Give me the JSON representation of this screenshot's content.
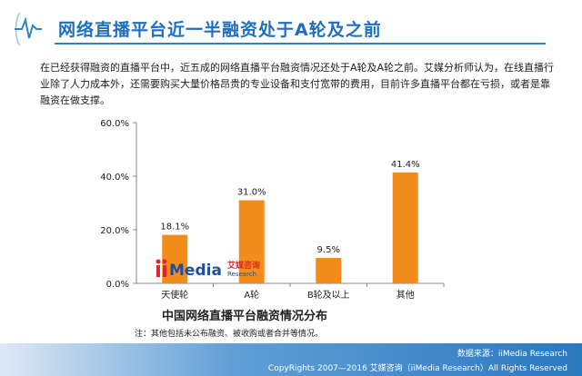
{
  "header": {
    "title": "网络直播平台近一半融资处于A轮及之前"
  },
  "description": "在已经获得融资的直播平台中，近五成的网络直播平台融资情况还处于A轮及A轮之前。艾媒分析师认为，在线直播行业除了人力成本外，还需要购买大量价格昂贵的专业设备和支付宽带的费用，目前许多直播平台都在亏损，或者是靠融资在做支撑。",
  "chart_data": {
    "type": "bar",
    "title": "中国网络直播平台融资情况分布",
    "categories": [
      "天使轮",
      "A轮",
      "B轮及以上",
      "其他"
    ],
    "values": [
      18.1,
      31.0,
      9.5,
      41.4
    ],
    "data_labels": [
      "18.1%",
      "31.0%",
      "9.5%",
      "41.4%"
    ],
    "ylim": [
      0,
      60
    ],
    "yticks": [
      "0.0%",
      "20.0%",
      "40.0%",
      "60.0%"
    ],
    "ytick_values": [
      0,
      20,
      40,
      60
    ],
    "bar_color": "#f28c1b",
    "grid": false
  },
  "logo": {
    "brand": "iiMedia",
    "sub": "Research",
    "cn": "艾媒咨询"
  },
  "note": "注：其他包括未公布融资、被收购或者合并等情况。",
  "footer": {
    "source": "数据来源：iiMedia Research",
    "copyright": "CopyRights 2007—2016 艾媒咨询（iiMedia Research）All Rights Reserved"
  },
  "colors": {
    "accent": "#1f6fbf",
    "bar": "#f28c1b"
  }
}
